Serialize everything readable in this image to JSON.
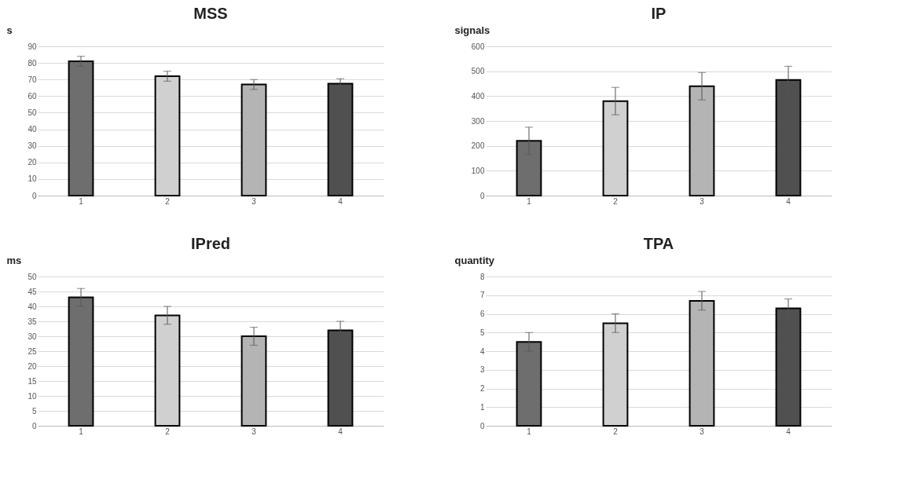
{
  "chart_data": [
    {
      "type": "bar",
      "title": "MSS",
      "ylabel": "s",
      "categories": [
        "1",
        "2",
        "3",
        "4"
      ],
      "values": [
        81,
        72,
        67,
        67.5
      ],
      "errors": [
        3,
        3,
        3,
        3
      ],
      "colors": [
        "#6e6e6e",
        "#d0d0d0",
        "#b4b4b4",
        "#505050"
      ],
      "ylim": [
        0,
        90
      ],
      "yticks": [
        0,
        10,
        20,
        30,
        40,
        50,
        60,
        70,
        80,
        90
      ],
      "grid": "y"
    },
    {
      "type": "bar",
      "title": "IP",
      "ylabel": "signals",
      "categories": [
        "1",
        "2",
        "3",
        "4"
      ],
      "values": [
        220,
        380,
        440,
        465
      ],
      "errors": [
        55,
        55,
        55,
        55
      ],
      "colors": [
        "#6e6e6e",
        "#d0d0d0",
        "#b4b4b4",
        "#505050"
      ],
      "ylim": [
        0,
        600
      ],
      "yticks": [
        0,
        100,
        200,
        300,
        400,
        500,
        600
      ],
      "grid": "y"
    },
    {
      "type": "bar",
      "title": "IPred",
      "ylabel": "ms",
      "categories": [
        "1",
        "2",
        "3",
        "4"
      ],
      "values": [
        43,
        37,
        30,
        32
      ],
      "errors": [
        3,
        3,
        3,
        3
      ],
      "colors": [
        "#6e6e6e",
        "#d0d0d0",
        "#b4b4b4",
        "#505050"
      ],
      "ylim": [
        0,
        50
      ],
      "yticks": [
        0,
        5,
        10,
        15,
        20,
        25,
        30,
        35,
        40,
        45,
        50
      ],
      "grid": "y"
    },
    {
      "type": "bar",
      "title": "TPA",
      "ylabel": "quantity",
      "categories": [
        "1",
        "2",
        "3",
        "4"
      ],
      "values": [
        4.5,
        5.5,
        6.7,
        6.3
      ],
      "errors": [
        0.5,
        0.5,
        0.5,
        0.5
      ],
      "colors": [
        "#6e6e6e",
        "#d0d0d0",
        "#b4b4b4",
        "#505050"
      ],
      "ylim": [
        0,
        8
      ],
      "yticks": [
        0,
        1,
        2,
        3,
        4,
        5,
        6,
        7,
        8
      ],
      "grid": "y"
    }
  ]
}
